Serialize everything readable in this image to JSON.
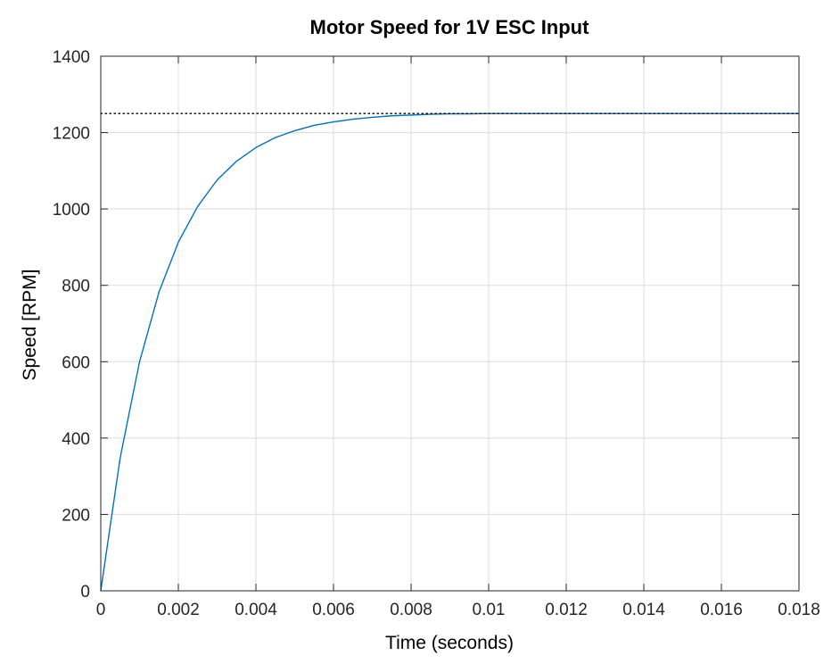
{
  "chart_data": {
    "type": "line",
    "title": "Motor Speed for 1V ESC Input",
    "xlabel": "Time (seconds)",
    "ylabel": "Speed [RPM]",
    "xlim": [
      0,
      0.018
    ],
    "ylim": [
      0,
      1400
    ],
    "x_ticks": [
      0,
      0.002,
      0.004,
      0.006,
      0.008,
      0.01,
      0.012,
      0.014,
      0.016,
      0.018
    ],
    "x_tick_labels": [
      "0",
      "0.002",
      "0.004",
      "0.006",
      "0.008",
      "0.01",
      "0.012",
      "0.014",
      "0.016",
      "0.018"
    ],
    "y_ticks": [
      0,
      200,
      400,
      600,
      800,
      1000,
      1200,
      1400
    ],
    "y_tick_labels": [
      "0",
      "200",
      "400",
      "600",
      "800",
      "1000",
      "1200",
      "1400"
    ],
    "grid": true,
    "series": [
      {
        "color": "#0072bd",
        "style": "solid",
        "x": [
          0,
          0.0005,
          0.001,
          0.0015,
          0.002,
          0.0025,
          0.003,
          0.0035,
          0.004,
          0.0045,
          0.005,
          0.0055,
          0.006,
          0.0065,
          0.007,
          0.0075,
          0.008,
          0.0085,
          0.009,
          0.0095,
          0.01,
          0.011,
          0.012,
          0.013,
          0.014,
          0.015,
          0.016,
          0.017,
          0.018
        ],
        "y": [
          0,
          348,
          600,
          782,
          913,
          1007,
          1076,
          1125,
          1161,
          1187,
          1205,
          1219,
          1228,
          1235,
          1240,
          1244,
          1246,
          1248,
          1249,
          1249,
          1250,
          1250,
          1250,
          1250,
          1250,
          1250,
          1250,
          1250,
          1250
        ]
      },
      {
        "color": "#000000",
        "style": "dotted",
        "x": [
          0,
          0.018
        ],
        "y": [
          1250,
          1250
        ]
      }
    ]
  }
}
